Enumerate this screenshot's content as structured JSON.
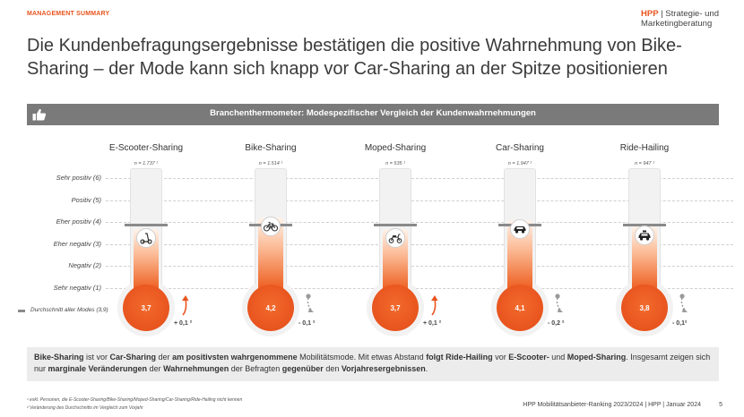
{
  "header": {
    "section_label": "MANAGEMENT SUMMARY",
    "brand_name": "HPP",
    "brand_sep": " | Strategie- und",
    "brand_line2": "Marketingberatung"
  },
  "title": "Die Kundenbefragungsergebnisse bestätigen die positive Wahrnehmung von Bike-Sharing – der Mode kann sich knapp vor Car-Sharing an der Spitze positionieren",
  "banner": {
    "title": "Branchenthermometer: Modespezifischer Vergleich der Kundenwahrnehmungen",
    "icon": "thumbs-up-icon"
  },
  "chart_data": {
    "type": "bar",
    "title": "Branchenthermometer: Modespezifischer Vergleich der Kundenwahrnehmungen",
    "scale_labels": [
      "Sehr positiv (6)",
      "Positiv (5)",
      "Eher positiv (4)",
      "Eher negativ (3)",
      "Negativ (2)",
      "Sehr negativ (1)"
    ],
    "ylim": [
      1,
      6
    ],
    "average_all_modes": 3.9,
    "average_label": "Durchschnitt aller Modes (3,9)",
    "categories": [
      "E-Scooter-Sharing",
      "Bike-Sharing",
      "Moped-Sharing",
      "Car-Sharing",
      "Ride-Hailing"
    ],
    "sample_sizes": [
      "n = 1.737 ¹",
      "n = 1.514 ¹",
      "n = 535 ¹",
      "n = 1.947 ¹",
      "n = 947 ¹"
    ],
    "values": [
      3.7,
      4.2,
      3.7,
      4.1,
      3.8
    ],
    "value_labels": [
      "3,7",
      "4,2",
      "3,7",
      "4,1",
      "3,8"
    ],
    "changes": [
      "+ 0,1 ²",
      "- 0,1 ²",
      "+ 0,1 ²",
      "- 0,2 ²",
      "- 0,1²"
    ],
    "change_direction": [
      "up",
      "down",
      "up",
      "down",
      "down"
    ],
    "icons": [
      "scooter-icon",
      "bicycle-icon",
      "moped-icon",
      "car-icon",
      "taxi-icon"
    ]
  },
  "colors": {
    "accent": "#e8541e",
    "banner": "#7a7a7a",
    "up_arrow": "#e8541e",
    "down_arrow": "#999999"
  },
  "summary": {
    "p1": "Bike-Sharing",
    "p2": " ist vor ",
    "p3": "Car-Sharing",
    "p4": " der ",
    "p5": "am positivsten wahrgenommene",
    "p6": " Mobilitätsmode. Mit etwas Abstand ",
    "p7": "folgt Ride-Hailing",
    "p8": " vor ",
    "p9": "E-Scooter-",
    "p10": " und ",
    "p11": "Moped-Sharing",
    "p12": ". Insgesamt zeigen sich nur ",
    "p13": "marginale Veränderungen",
    "p14": " der ",
    "p15": "Wahrnehmungen",
    "p16": " der Befragten ",
    "p17": "gegenüber",
    "p18": " den ",
    "p19": "Vorjahresergebnissen",
    "p20": "."
  },
  "footnotes": {
    "f1": "¹ exkl. Personen, die E-Scooter-Sharing/Bike-Sharing/Moped-Sharing/Car-Sharing/Ride-Hailing nicht kennen",
    "f2": "² Veränderung des Durchschnitts im Vergleich zum Vorjahr"
  },
  "footer": {
    "text": "HPP Mobilitätsanbieter-Ranking 2023/2024 | HPP | Januar 2024",
    "page": "5"
  }
}
